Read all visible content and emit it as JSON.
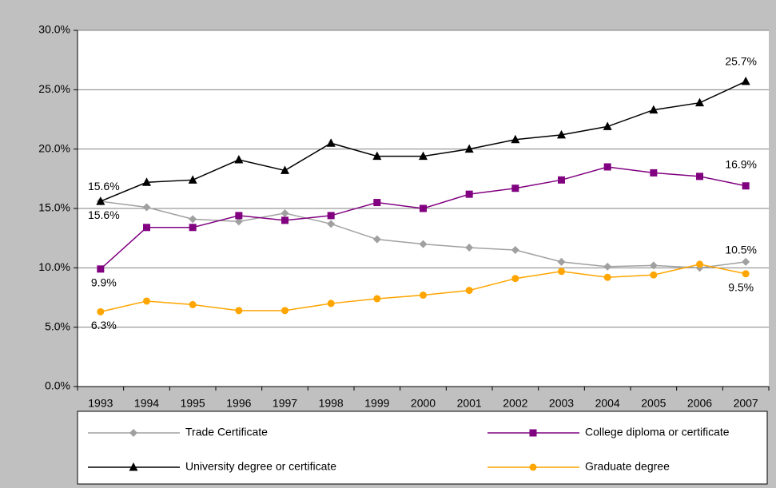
{
  "chart_data": {
    "type": "line",
    "categories": [
      "1993",
      "1994",
      "1995",
      "1996",
      "1997",
      "1998",
      "1999",
      "2000",
      "2001",
      "2002",
      "2003",
      "2004",
      "2005",
      "2006",
      "2007"
    ],
    "series": [
      {
        "name": "Trade Certificate",
        "color": "#a0a0a0",
        "marker": "diamond",
        "values": [
          15.6,
          15.1,
          14.1,
          13.9,
          14.6,
          13.7,
          12.4,
          12.0,
          11.7,
          11.5,
          10.5,
          10.1,
          10.2,
          10.0,
          10.5
        ],
        "value_labels": [
          "15.6%",
          null,
          null,
          null,
          null,
          null,
          null,
          null,
          null,
          null,
          null,
          null,
          null,
          null,
          "10.5%"
        ]
      },
      {
        "name": "College diploma or certificate",
        "color": "#800080",
        "marker": "square",
        "values": [
          9.9,
          13.4,
          13.4,
          14.4,
          14.0,
          14.4,
          15.5,
          15.0,
          16.2,
          16.7,
          17.4,
          18.5,
          18.0,
          17.7,
          16.9
        ],
        "value_labels": [
          "9.9%",
          null,
          null,
          null,
          null,
          null,
          null,
          null,
          null,
          null,
          null,
          null,
          null,
          null,
          "16.9%"
        ]
      },
      {
        "name": "University degree or certificate",
        "color": "#000000",
        "marker": "triangle",
        "values": [
          15.6,
          17.2,
          17.4,
          19.1,
          18.2,
          20.5,
          19.4,
          19.4,
          20.0,
          20.8,
          21.2,
          21.9,
          23.3,
          23.9,
          25.7
        ],
        "value_labels": [
          "15.6%",
          null,
          null,
          null,
          null,
          null,
          null,
          null,
          null,
          null,
          null,
          null,
          null,
          null,
          "25.7%"
        ]
      },
      {
        "name": "Graduate degree",
        "color": "#ffa500",
        "marker": "circle",
        "values": [
          6.3,
          7.2,
          6.9,
          6.4,
          6.4,
          7.0,
          7.4,
          7.7,
          8.1,
          9.1,
          9.7,
          9.2,
          9.4,
          10.3,
          9.5
        ],
        "value_labels": [
          "6.3%",
          null,
          null,
          null,
          null,
          null,
          null,
          null,
          null,
          null,
          null,
          null,
          null,
          null,
          "9.5%"
        ]
      }
    ],
    "ylim": [
      0,
      30
    ],
    "yticks": [
      {
        "value": 0,
        "label": "0.0%"
      },
      {
        "value": 5,
        "label": "5.0%"
      },
      {
        "value": 10,
        "label": "10.0%"
      },
      {
        "value": 15,
        "label": "15.0%"
      },
      {
        "value": 20,
        "label": "20.0%"
      },
      {
        "value": 25,
        "label": "25.0%"
      },
      {
        "value": 30,
        "label": "30.0%"
      }
    ],
    "grid": true,
    "legend": "bottom"
  }
}
